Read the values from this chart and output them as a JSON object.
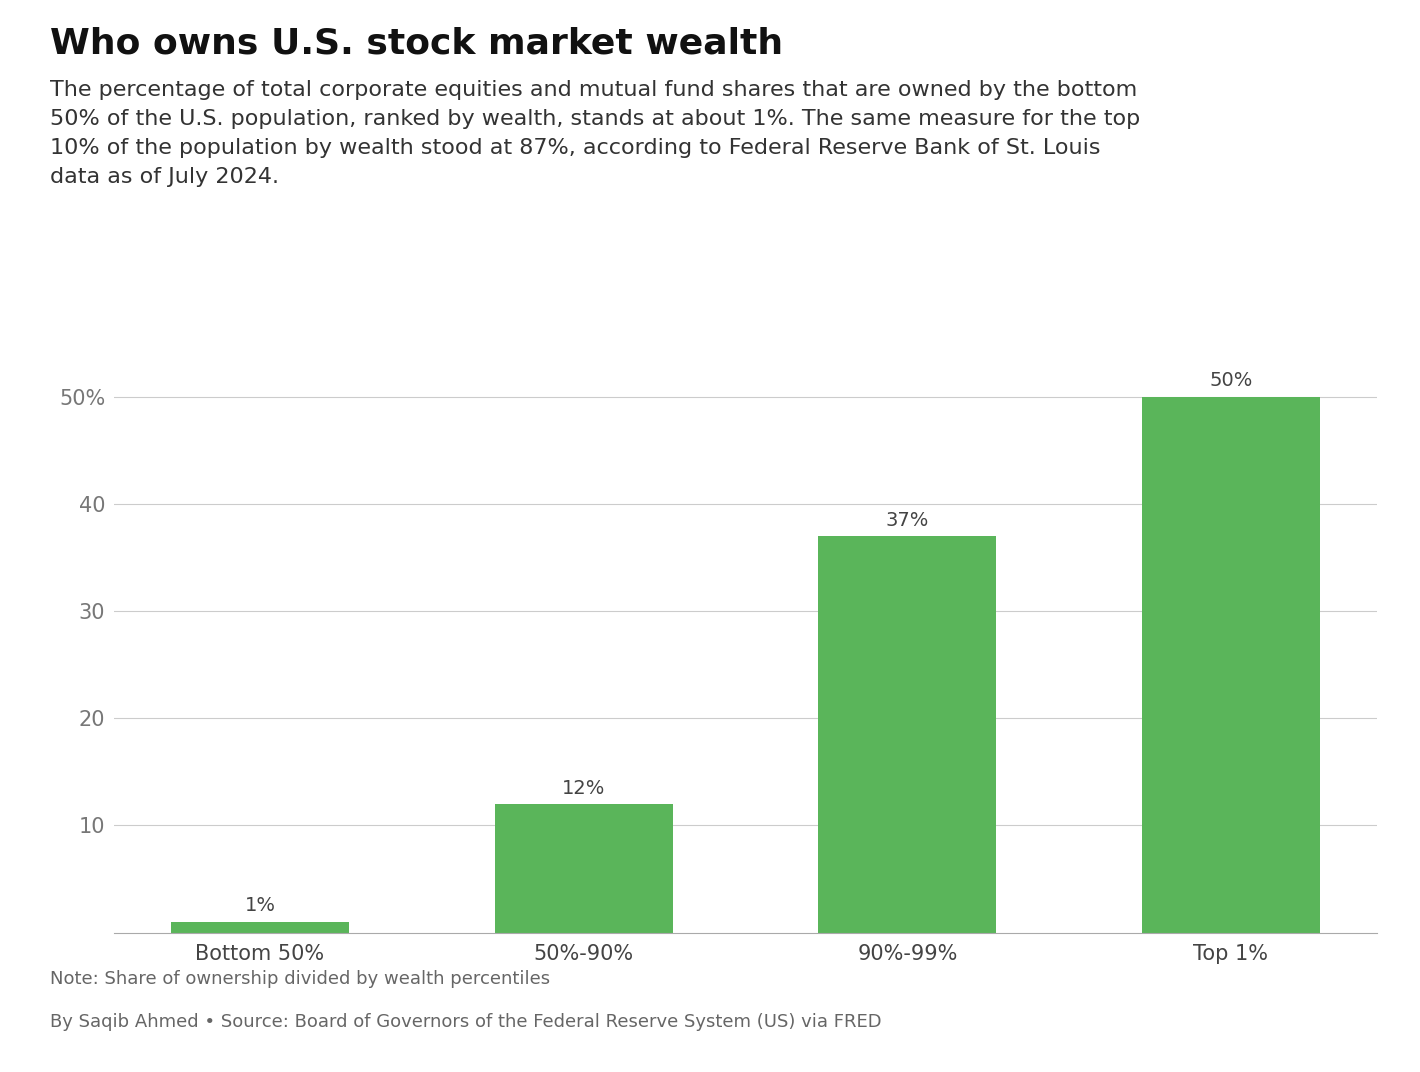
{
  "title": "Who owns U.S. stock market wealth",
  "subtitle": "The percentage of total corporate equities and mutual fund shares that are owned by the bottom\n50% of the U.S. population, ranked by wealth, stands at about 1%. The same measure for the top\n10% of the population by wealth stood at 87%, according to Federal Reserve Bank of St. Louis\ndata as of July 2024.",
  "categories": [
    "Bottom 50%",
    "50%-90%",
    "90%-99%",
    "Top 1%"
  ],
  "values": [
    1,
    12,
    37,
    50
  ],
  "bar_color": "#5ab55a",
  "bar_labels": [
    "1%",
    "12%",
    "37%",
    "50%"
  ],
  "yticks": [
    10,
    20,
    30,
    40,
    50
  ],
  "ytick_labels": [
    "10",
    "20",
    "30",
    "40",
    "50%"
  ],
  "ylim": [
    0,
    55
  ],
  "note": "Note: Share of ownership divided by wealth percentiles",
  "source": "By Saqib Ahmed • Source: Board of Governors of the Federal Reserve System (US) via FRED",
  "background_color": "#ffffff",
  "grid_color": "#cccccc",
  "text_color": "#444444",
  "label_color": "#777777",
  "title_fontsize": 26,
  "subtitle_fontsize": 16,
  "bar_label_fontsize": 14,
  "tick_label_fontsize": 15,
  "note_fontsize": 13,
  "source_fontsize": 13,
  "xtick_fontsize": 15
}
